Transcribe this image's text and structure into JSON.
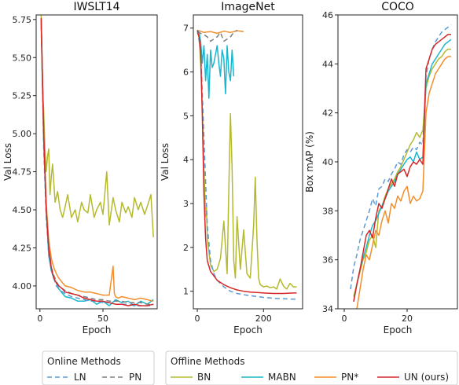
{
  "colors": {
    "LN": "#5b9bd5",
    "PN": "#7f7f7f",
    "BN": "#b5b92e",
    "MABN": "#1ab6cf",
    "PN*": "#f28e2b",
    "UN (ours)": "#d62728"
  },
  "legends": {
    "online": {
      "title": "Online Methods",
      "items": [
        {
          "label": "LN",
          "color": "#5b9bd5",
          "dash": true
        },
        {
          "label": "PN",
          "color": "#7f7f7f",
          "dash": true
        }
      ]
    },
    "offline": {
      "title": "Offline Methods",
      "items": [
        {
          "label": "BN",
          "color": "#b5b92e",
          "dash": false
        },
        {
          "label": "MABN",
          "color": "#1ab6cf",
          "dash": false
        },
        {
          "label": "PN*",
          "color": "#f28e2b",
          "dash": false
        },
        {
          "label": "UN (ours)",
          "color": "#d62728",
          "dash": false
        }
      ]
    }
  },
  "chart_data": [
    {
      "type": "line",
      "title": "IWSLT14",
      "xlabel": "Epoch",
      "ylabel": "Val Loss",
      "xlim": [
        -3,
        93
      ],
      "ylim": [
        3.85,
        5.78
      ],
      "xticks": [
        0,
        50
      ],
      "yticks": [
        4.0,
        4.25,
        4.5,
        4.75,
        5.0,
        5.25,
        5.5,
        5.75
      ],
      "ytick_labels": [
        "4.00",
        "4.25",
        "4.50",
        "4.75",
        "5.00",
        "5.25",
        "5.50",
        "5.75"
      ],
      "series": [
        {
          "name": "BN",
          "x": [
            1,
            2,
            3,
            4,
            5,
            6,
            7,
            8,
            9,
            10,
            12,
            14,
            16,
            18,
            20,
            22,
            25,
            28,
            30,
            33,
            35,
            38,
            40,
            43,
            45,
            48,
            50,
            53,
            55,
            58,
            60,
            63,
            65,
            68,
            70,
            73,
            75,
            78,
            80,
            83,
            85,
            88,
            90
          ],
          "y": [
            5.78,
            5.3,
            5.15,
            4.9,
            4.75,
            4.85,
            4.9,
            4.6,
            4.72,
            4.8,
            4.55,
            4.62,
            4.5,
            4.45,
            4.52,
            4.6,
            4.45,
            4.5,
            4.42,
            4.55,
            4.5,
            4.48,
            4.6,
            4.45,
            4.5,
            4.55,
            4.47,
            4.75,
            4.4,
            4.58,
            4.5,
            4.42,
            4.55,
            4.48,
            4.52,
            4.45,
            4.58,
            4.5,
            4.55,
            4.47,
            4.52,
            4.6,
            4.32
          ]
        },
        {
          "name": "MABN",
          "x": [
            1,
            3,
            5,
            7,
            9,
            11,
            13,
            15,
            18,
            20,
            25,
            30,
            35,
            40,
            45,
            50,
            55,
            60,
            65,
            70,
            75,
            80,
            85,
            90
          ],
          "y": [
            5.75,
            5.0,
            4.5,
            4.2,
            4.1,
            4.05,
            4.02,
            3.98,
            3.95,
            3.93,
            3.92,
            3.9,
            3.9,
            3.91,
            3.88,
            3.9,
            3.87,
            3.91,
            3.89,
            3.9,
            3.87,
            3.9,
            3.88,
            3.91
          ]
        },
        {
          "name": "LN",
          "x": [
            1,
            3,
            5,
            7,
            9,
            11,
            13,
            15,
            18,
            20,
            25,
            30,
            35,
            40,
            45,
            50,
            55,
            60,
            65,
            70,
            75,
            80,
            85,
            90
          ],
          "y": [
            5.7,
            4.9,
            4.45,
            4.2,
            4.1,
            4.05,
            4.0,
            3.98,
            3.96,
            3.95,
            3.93,
            3.92,
            3.91,
            3.9,
            3.9,
            3.89,
            3.89,
            3.88,
            3.88,
            3.88,
            3.87,
            3.87,
            3.87,
            3.87
          ]
        },
        {
          "name": "PN",
          "x": [
            1,
            3,
            5,
            7,
            9,
            11,
            13,
            15,
            18,
            20,
            25,
            30,
            35,
            40,
            45,
            50,
            55,
            60,
            65,
            70,
            75,
            80,
            85,
            90
          ],
          "y": [
            5.72,
            4.95,
            4.5,
            4.25,
            4.12,
            4.07,
            4.03,
            4.0,
            3.98,
            3.97,
            3.95,
            3.94,
            3.93,
            3.92,
            3.91,
            3.91,
            3.9,
            3.9,
            3.9,
            3.89,
            3.89,
            3.89,
            3.88,
            3.88
          ]
        },
        {
          "name": "PN*",
          "x": [
            1,
            3,
            5,
            7,
            9,
            11,
            13,
            15,
            18,
            20,
            25,
            30,
            35,
            40,
            45,
            50,
            55,
            58,
            59,
            60,
            62,
            65,
            70,
            75,
            80,
            85,
            90
          ],
          "y": [
            5.75,
            5.0,
            4.55,
            4.3,
            4.18,
            4.12,
            4.08,
            4.05,
            4.02,
            4.0,
            3.99,
            3.97,
            3.96,
            3.96,
            3.95,
            3.94,
            3.94,
            4.13,
            3.95,
            3.93,
            3.92,
            3.93,
            3.92,
            3.91,
            3.92,
            3.91,
            3.9
          ]
        },
        {
          "name": "UN (ours)",
          "x": [
            1,
            3,
            5,
            7,
            9,
            11,
            13,
            15,
            18,
            20,
            25,
            30,
            35,
            40,
            45,
            50,
            55,
            60,
            65,
            70,
            75,
            80,
            85,
            90
          ],
          "y": [
            5.76,
            5.0,
            4.5,
            4.25,
            4.12,
            4.05,
            4.02,
            4.0,
            3.98,
            3.96,
            3.95,
            3.94,
            3.92,
            3.91,
            3.9,
            3.9,
            3.89,
            3.88,
            3.88,
            3.87,
            3.88,
            3.87,
            3.87,
            3.88
          ]
        }
      ]
    },
    {
      "type": "line",
      "title": "ImageNet",
      "xlabel": "Epoch",
      "ylabel": "Val Loss",
      "xlim": [
        -12,
        318
      ],
      "ylim": [
        0.6,
        7.3
      ],
      "xticks": [
        0,
        200
      ],
      "yticks": [
        1,
        2,
        3,
        4,
        5,
        6,
        7
      ],
      "ytick_labels": [
        "1",
        "2",
        "3",
        "4",
        "5",
        "6",
        "7"
      ],
      "series": [
        {
          "name": "PN*",
          "x": [
            0,
            20,
            40,
            60,
            80,
            100,
            120,
            140
          ],
          "y": [
            6.95,
            6.9,
            6.92,
            6.88,
            6.93,
            6.9,
            6.94,
            6.92
          ]
        },
        {
          "name": "PN",
          "x": [
            0,
            10,
            20,
            30,
            40,
            50,
            60,
            70,
            80,
            90,
            100,
            110,
            120
          ],
          "y": [
            6.92,
            6.88,
            6.85,
            6.8,
            6.7,
            6.75,
            6.8,
            6.9,
            6.7,
            6.75,
            6.8,
            6.9,
            6.95
          ]
        },
        {
          "name": "MABN",
          "x": [
            0,
            5,
            10,
            15,
            20,
            25,
            30,
            35,
            40,
            45,
            50,
            55,
            60,
            65,
            70,
            75,
            80,
            85,
            90,
            95,
            100,
            105,
            110
          ],
          "y": [
            6.95,
            6.9,
            6.7,
            6.2,
            6.6,
            5.8,
            6.4,
            5.4,
            6.5,
            6.1,
            6.2,
            6.4,
            6.6,
            6.2,
            5.9,
            6.5,
            6.3,
            5.5,
            6.6,
            6.0,
            5.8,
            6.5,
            5.9
          ]
        },
        {
          "name": "BN",
          "x": [
            0,
            5,
            10,
            15,
            20,
            25,
            28,
            30,
            40,
            50,
            60,
            70,
            80,
            90,
            95,
            100,
            105,
            110,
            115,
            120,
            130,
            140,
            150,
            160,
            170,
            175,
            180,
            185,
            190,
            200,
            210,
            220,
            230,
            240,
            250,
            260,
            270,
            280,
            290,
            300
          ],
          "y": [
            6.9,
            6.8,
            6.2,
            5.2,
            3.8,
            2.7,
            2.9,
            2.2,
            1.6,
            1.45,
            1.5,
            1.75,
            2.6,
            1.4,
            3.3,
            5.05,
            3.8,
            1.7,
            1.3,
            2.7,
            1.5,
            2.4,
            1.4,
            1.3,
            2.5,
            3.6,
            2.2,
            1.3,
            1.15,
            1.1,
            1.12,
            1.08,
            1.1,
            1.05,
            1.28,
            1.12,
            1.05,
            1.18,
            1.1,
            1.1
          ]
        },
        {
          "name": "LN",
          "x": [
            0,
            10,
            20,
            30,
            40,
            50,
            60,
            80,
            100,
            120,
            140,
            160,
            180,
            200,
            230,
            260,
            290,
            300
          ],
          "y": [
            6.95,
            6.5,
            4.5,
            2.5,
            1.7,
            1.4,
            1.25,
            1.1,
            1.0,
            0.95,
            0.92,
            0.9,
            0.88,
            0.86,
            0.84,
            0.83,
            0.82,
            0.82
          ]
        },
        {
          "name": "UN (ours)",
          "x": [
            0,
            5,
            10,
            15,
            20,
            25,
            30,
            40,
            50,
            60,
            80,
            100,
            120,
            140,
            160,
            180,
            200,
            230,
            260,
            290,
            300
          ],
          "y": [
            6.95,
            6.8,
            6.5,
            5.0,
            3.2,
            2.2,
            1.7,
            1.45,
            1.35,
            1.25,
            1.15,
            1.08,
            1.03,
            1.0,
            0.98,
            0.97,
            0.96,
            0.95,
            0.95,
            0.96,
            0.96
          ]
        }
      ]
    },
    {
      "type": "line",
      "title": "COCO",
      "xlabel": "Epoch",
      "ylabel": "Box mAP (%)",
      "xlim": [
        -2,
        36
      ],
      "ylim": [
        34,
        46
      ],
      "xticks": [
        0,
        20
      ],
      "yticks": [
        34,
        36,
        38,
        40,
        42,
        44,
        46
      ],
      "ytick_labels": [
        "34",
        "36",
        "38",
        "40",
        "42",
        "44",
        "46"
      ],
      "series": [
        {
          "name": "LN",
          "x": [
            2,
            3,
            4,
            5,
            6,
            7,
            8,
            9,
            10,
            11,
            12,
            13,
            14,
            15,
            16,
            17,
            18,
            19,
            20,
            21,
            22,
            23,
            24,
            25,
            26,
            27,
            28,
            29,
            30,
            31,
            32,
            33,
            34
          ],
          "y": [
            34.8,
            35.7,
            36.2,
            36.8,
            37.2,
            37.6,
            38.0,
            38.5,
            38.2,
            38.9,
            39.0,
            39.3,
            39.2,
            39.5,
            39.7,
            40.0,
            39.9,
            40.3,
            40.5,
            40.4,
            40.6,
            40.5,
            40.8,
            40.7,
            43.5,
            44.2,
            44.6,
            44.9,
            45.1,
            45.3,
            45.4,
            45.5,
            45.6
          ]
        },
        {
          "name": "BN",
          "x": [
            3,
            4,
            5,
            6,
            7,
            8,
            9,
            10,
            11,
            12,
            13,
            14,
            15,
            16,
            17,
            18,
            19,
            20,
            21,
            22,
            23,
            24,
            25,
            26,
            27,
            28,
            29,
            30,
            31,
            32,
            33,
            34
          ],
          "y": [
            34.5,
            35.0,
            35.5,
            36.0,
            36.3,
            36.8,
            37.0,
            36.5,
            38.0,
            38.2,
            38.6,
            38.9,
            39.1,
            39.3,
            39.6,
            39.8,
            40.1,
            40.4,
            40.7,
            40.9,
            41.2,
            41.0,
            41.3,
            43.0,
            43.5,
            43.8,
            44.0,
            44.2,
            44.3,
            44.5,
            44.6,
            44.6
          ]
        },
        {
          "name": "MABN",
          "x": [
            3,
            4,
            5,
            6,
            7,
            8,
            9,
            10,
            11,
            12,
            13,
            14,
            15,
            16,
            17,
            18,
            19,
            20,
            21,
            22,
            23,
            24,
            25,
            26,
            27,
            28,
            29,
            30,
            31,
            32,
            33,
            34
          ],
          "y": [
            34.3,
            35.0,
            35.6,
            36.1,
            36.5,
            37.0,
            37.4,
            37.6,
            37.9,
            38.2,
            38.5,
            38.8,
            39.0,
            39.2,
            39.5,
            39.7,
            39.9,
            40.1,
            40.2,
            40.0,
            40.4,
            40.1,
            40.2,
            43.2,
            43.6,
            44.0,
            44.2,
            44.4,
            44.6,
            44.8,
            44.9,
            45.0
          ]
        },
        {
          "name": "PN*",
          "x": [
            4,
            5,
            6,
            7,
            8,
            9,
            10,
            11,
            12,
            13,
            14,
            15,
            16,
            17,
            18,
            19,
            20,
            21,
            22,
            23,
            24,
            25,
            26,
            27,
            28,
            29,
            30,
            31,
            32,
            33,
            34
          ],
          "y": [
            34.0,
            34.8,
            35.6,
            36.2,
            36.0,
            36.6,
            37.2,
            37.0,
            37.6,
            38.0,
            37.5,
            38.3,
            38.1,
            38.6,
            38.4,
            38.8,
            39.0,
            38.3,
            38.6,
            38.4,
            38.5,
            38.8,
            42.0,
            42.8,
            43.2,
            43.6,
            43.8,
            44.0,
            44.2,
            44.3,
            44.3
          ]
        },
        {
          "name": "UN (ours)",
          "x": [
            3,
            4,
            5,
            6,
            7,
            8,
            9,
            10,
            11,
            12,
            13,
            14,
            15,
            16,
            17,
            18,
            19,
            20,
            21,
            22,
            23,
            24,
            25,
            26,
            27,
            28,
            29,
            30,
            31,
            32,
            33,
            34
          ],
          "y": [
            34.3,
            35.0,
            35.6,
            36.3,
            37.0,
            37.2,
            36.9,
            37.7,
            38.3,
            38.1,
            38.5,
            38.9,
            39.3,
            39.0,
            39.5,
            39.6,
            39.7,
            39.4,
            39.8,
            40.0,
            39.9,
            40.1,
            39.9,
            43.8,
            44.2,
            44.6,
            44.8,
            44.9,
            45.0,
            45.1,
            45.2,
            45.2
          ]
        }
      ]
    }
  ]
}
